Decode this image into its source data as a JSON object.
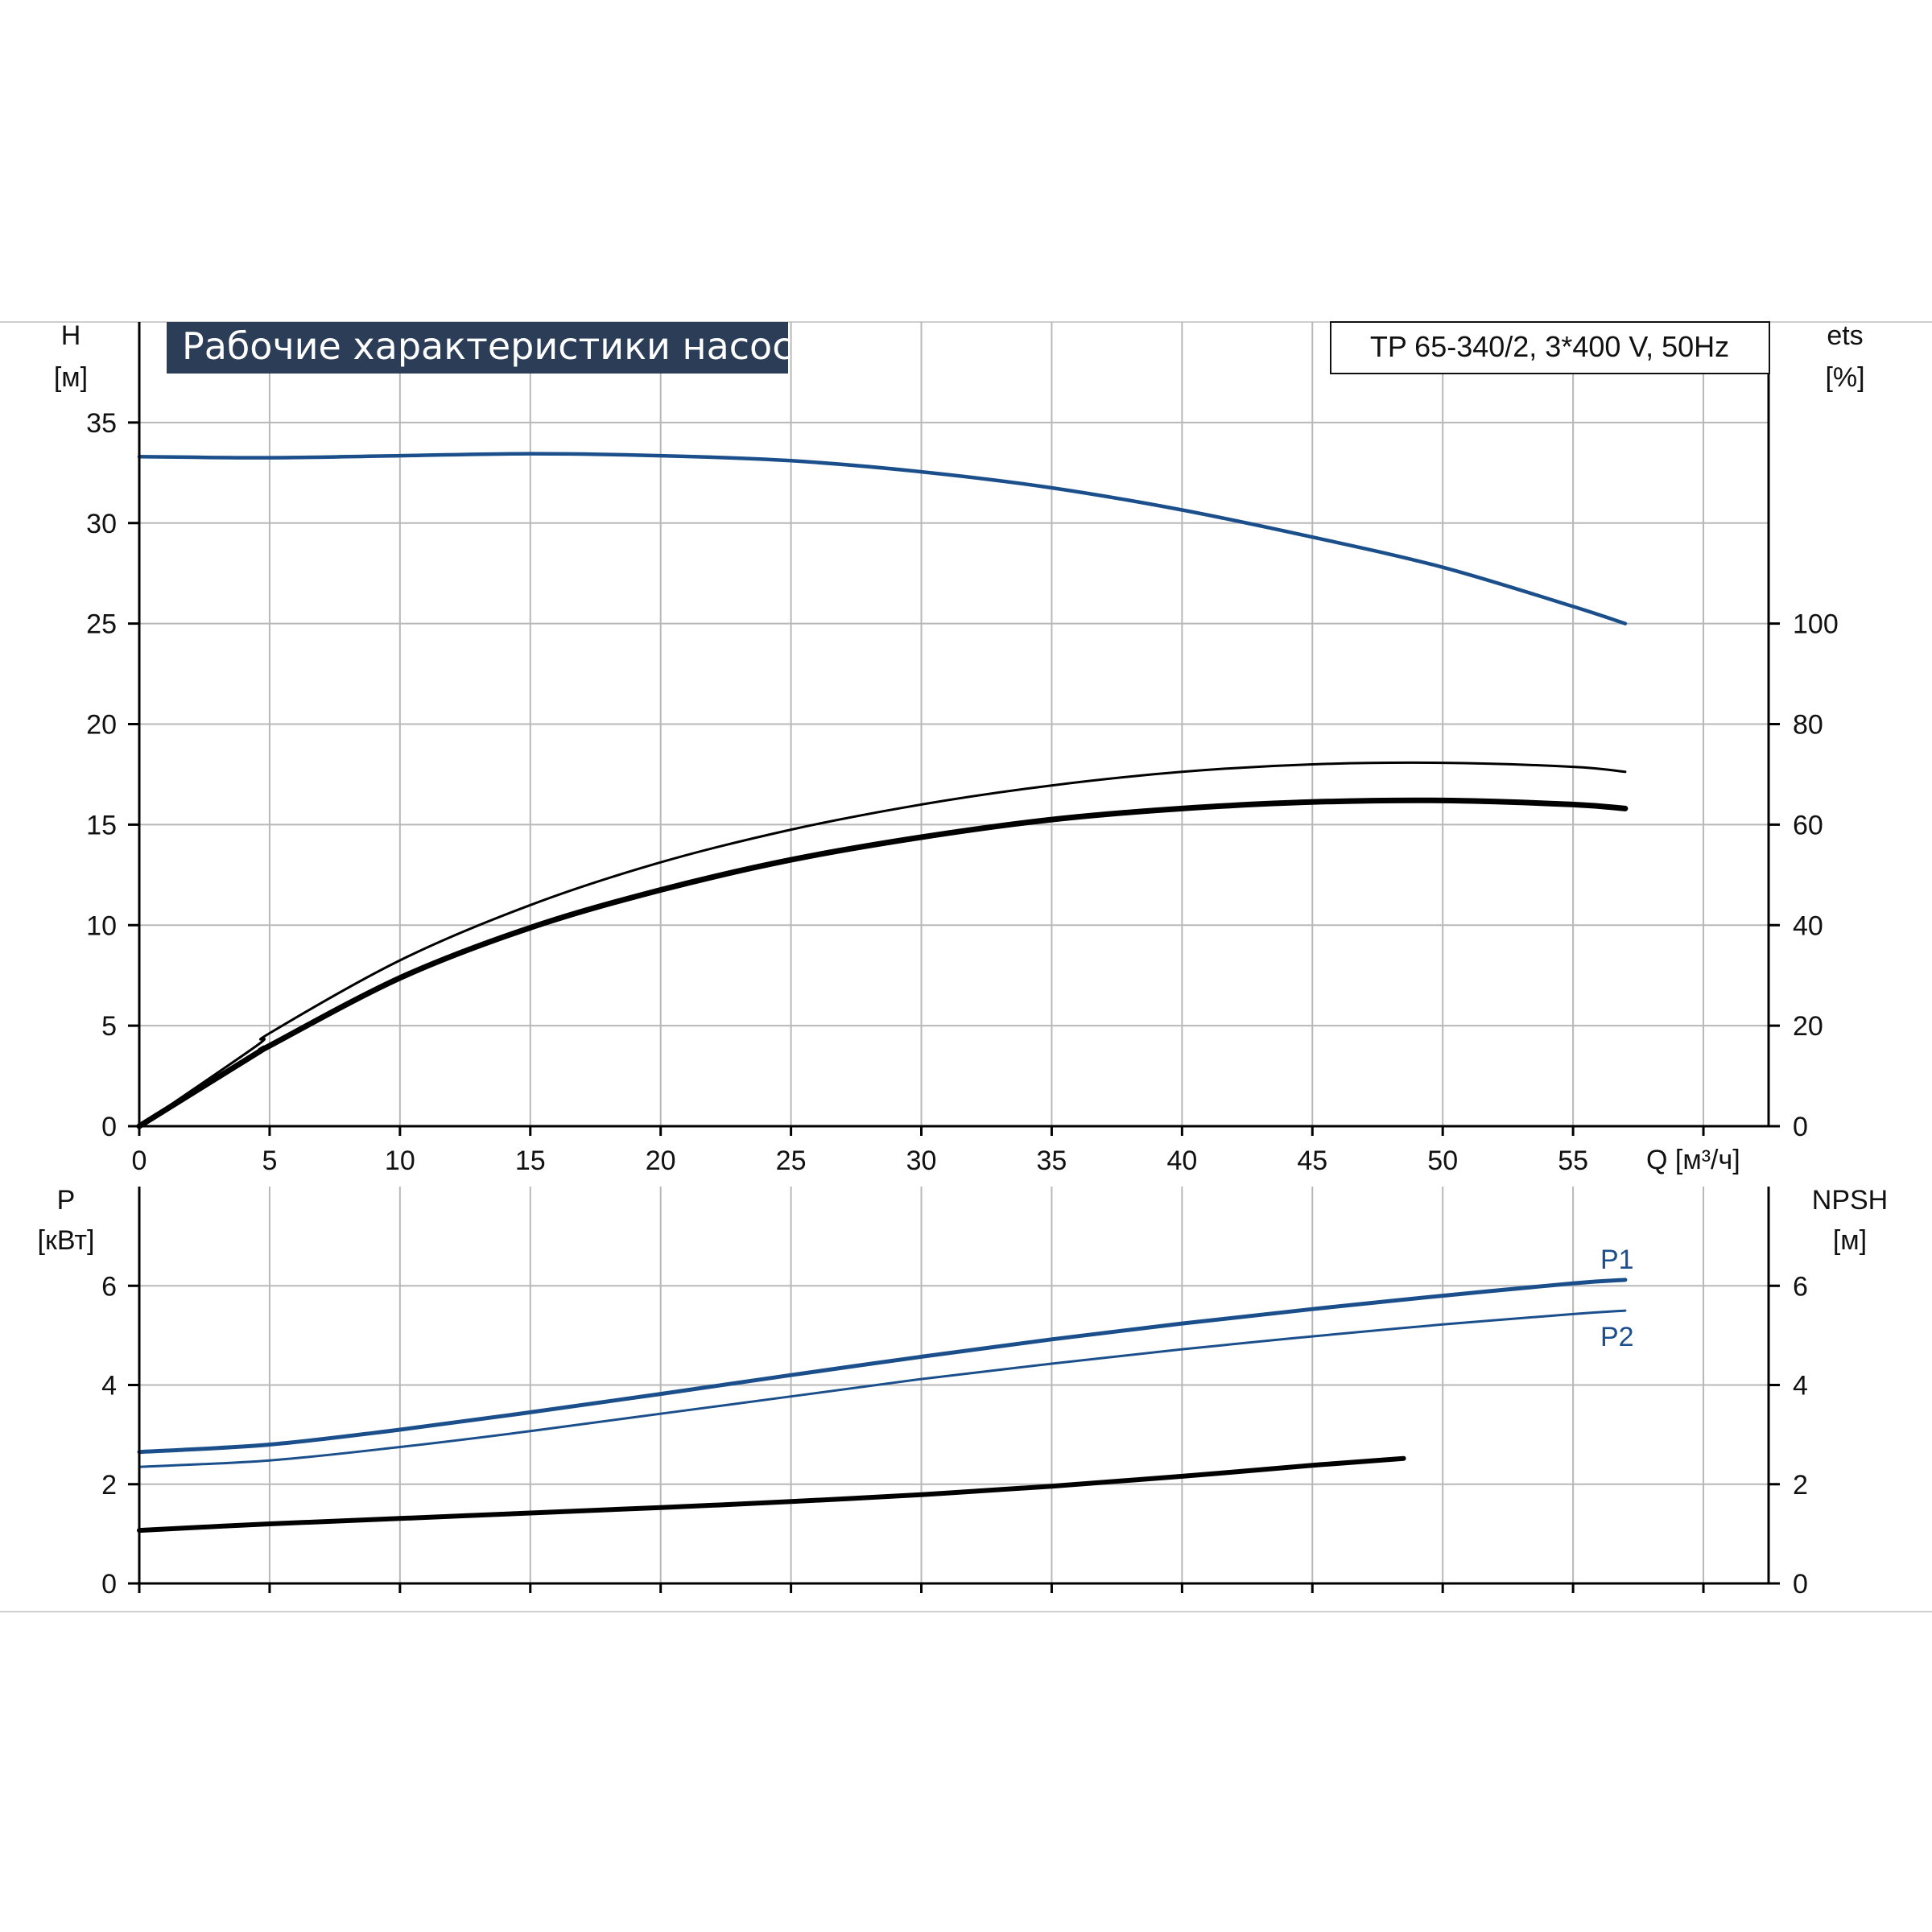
{
  "colors": {
    "blue": "#1b4f8c",
    "black": "#000000",
    "grid": "#b8b8b8",
    "title_bg": "#2c3e57"
  },
  "chart_data": [
    {
      "type": "line",
      "title": "Рабочие характеристики насоса",
      "model": "TP 65-340/2, 3*400 V, 50Hz",
      "xlabel": "Q [м³/ч]",
      "x_ticks": [
        "0",
        "5",
        "10",
        "15",
        "20",
        "25",
        "30",
        "35",
        "40",
        "45",
        "50",
        "55"
      ],
      "xlim": [
        0,
        62.5
      ],
      "y_left": {
        "label": [
          "H",
          "[м]"
        ],
        "ticks": [
          "0",
          "5",
          "10",
          "15",
          "20",
          "25",
          "30",
          "35"
        ],
        "lim": [
          0,
          40
        ]
      },
      "y_right": {
        "label": [
          "ets",
          "[%]"
        ],
        "ticks": [
          "0",
          "20",
          "40",
          "60",
          "80",
          "100"
        ],
        "lim": [
          0,
          160
        ]
      },
      "grid": true,
      "series": [
        {
          "axis": "left",
          "color": "blue",
          "width": 4.5,
          "x": [
            0,
            5,
            10,
            15,
            20,
            25,
            30,
            35,
            40,
            45,
            50,
            55,
            57
          ],
          "y": [
            33.3,
            33.25,
            33.35,
            33.45,
            33.35,
            33.1,
            32.55,
            31.75,
            30.65,
            29.3,
            27.8,
            25.85,
            25.0
          ]
        },
        {
          "axis": "right",
          "color": "black",
          "width": 3,
          "x": [
            0,
            4.5,
            5,
            10,
            15,
            20,
            25,
            30,
            35,
            40,
            45,
            50,
            55,
            57
          ],
          "y": [
            0,
            16,
            18.5,
            33,
            44,
            52.5,
            59,
            64,
            67.8,
            70.5,
            72,
            72.3,
            71.5,
            70.5
          ]
        },
        {
          "axis": "right",
          "color": "black",
          "width": 7,
          "x": [
            0,
            4.5,
            5,
            10,
            15,
            20,
            25,
            30,
            35,
            40,
            45,
            50,
            55,
            57
          ],
          "y": [
            0,
            14.5,
            16,
            29.5,
            39.5,
            47,
            53,
            57.5,
            61,
            63.2,
            64.5,
            64.8,
            64,
            63.2
          ]
        }
      ]
    },
    {
      "type": "line",
      "xlim": [
        0,
        62.5
      ],
      "y_left": {
        "label": [
          "P",
          "[кВт]"
        ],
        "ticks": [
          "0",
          "2",
          "4",
          "6"
        ],
        "lim": [
          0,
          8
        ]
      },
      "y_right": {
        "label": [
          "NPSH",
          "[м]"
        ],
        "ticks": [
          "0",
          "2",
          "4",
          "6"
        ],
        "lim": [
          0,
          8
        ]
      },
      "grid": true,
      "series": [
        {
          "name": "P1",
          "axis": "left",
          "color": "blue",
          "width": 5,
          "x": [
            0,
            5,
            10,
            15,
            20,
            25,
            30,
            35,
            40,
            45,
            50,
            55,
            57
          ],
          "y": [
            2.65,
            2.8,
            3.1,
            3.45,
            3.82,
            4.2,
            4.57,
            4.92,
            5.24,
            5.53,
            5.8,
            6.05,
            6.12
          ]
        },
        {
          "name": "P2",
          "axis": "left",
          "color": "blue",
          "width": 3,
          "x": [
            0,
            5,
            10,
            15,
            20,
            25,
            30,
            35,
            40,
            45,
            50,
            55,
            57
          ],
          "y": [
            2.35,
            2.48,
            2.75,
            3.07,
            3.42,
            3.77,
            4.12,
            4.43,
            4.72,
            4.98,
            5.22,
            5.43,
            5.5
          ]
        },
        {
          "axis": "right",
          "color": "black",
          "width": 6,
          "x": [
            0,
            5,
            10,
            15,
            20,
            25,
            30,
            35,
            40,
            45,
            48.5
          ],
          "y": [
            1.07,
            1.2,
            1.31,
            1.42,
            1.53,
            1.65,
            1.79,
            1.96,
            2.16,
            2.38,
            2.52
          ]
        }
      ]
    }
  ]
}
